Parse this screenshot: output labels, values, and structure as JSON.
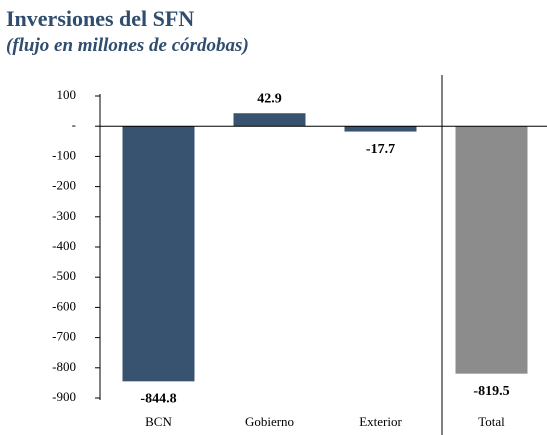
{
  "chart_data": {
    "type": "bar",
    "title": "Inversiones del SFN",
    "subtitle": "(flujo en millones de córdobas)",
    "categories": [
      "BCN",
      "Gobierno",
      "Exterior",
      "Total"
    ],
    "values": [
      -844.8,
      42.9,
      -17.7,
      -819.5
    ],
    "colors": [
      "#38536f",
      "#38536f",
      "#38536f",
      "#8c8c8c"
    ],
    "ylim": [
      -900,
      100
    ],
    "yticks": [
      100,
      {
        "value": 0,
        "label": "-"
      },
      -100,
      -200,
      -300,
      -400,
      -500,
      -600,
      -700,
      -800,
      -900
    ],
    "grid": false
  }
}
